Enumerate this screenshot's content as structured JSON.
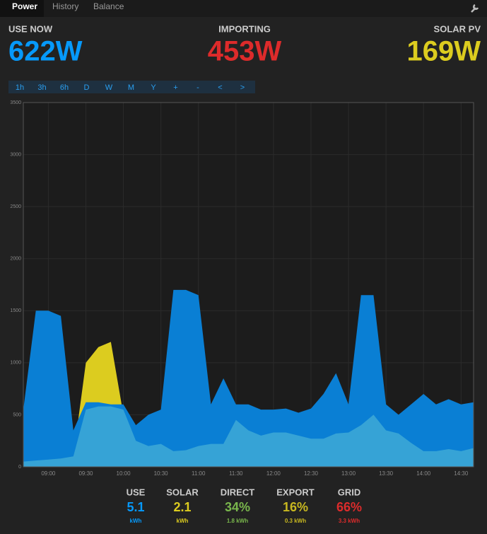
{
  "nav": {
    "tabs": [
      "Power",
      "History",
      "Balance"
    ]
  },
  "stats": [
    {
      "label": "USE NOW",
      "value": "622W",
      "color": "#0699fa"
    },
    {
      "label": "IMPORTING",
      "value": "453W",
      "color": "#dd2b2b"
    },
    {
      "label": "SOLAR PV",
      "value": "169W",
      "color": "#dccc1f"
    }
  ],
  "range_buttons": [
    "1h",
    "3h",
    "6h",
    "D",
    "W",
    "M",
    "Y",
    "+",
    "-",
    "<",
    ">"
  ],
  "chart_data": {
    "type": "area",
    "x": [
      "08:40",
      "08:50",
      "09:00",
      "09:10",
      "09:20",
      "09:30",
      "09:40",
      "09:50",
      "10:00",
      "10:10",
      "10:20",
      "10:30",
      "10:40",
      "10:50",
      "11:00",
      "11:10",
      "11:20",
      "11:30",
      "11:40",
      "11:50",
      "12:00",
      "12:10",
      "12:20",
      "12:30",
      "12:40",
      "12:50",
      "13:00",
      "13:10",
      "13:20",
      "13:30",
      "13:40",
      "13:50",
      "14:00",
      "14:10",
      "14:20",
      "14:30",
      "14:40"
    ],
    "series": [
      {
        "name": "Solar",
        "color": "#dccc1f",
        "values": [
          50,
          60,
          70,
          80,
          100,
          1000,
          1150,
          1200,
          500,
          250,
          200,
          220,
          150,
          160,
          200,
          220,
          220,
          450,
          350,
          300,
          330,
          330,
          300,
          270,
          270,
          320,
          330,
          400,
          500,
          350,
          320,
          230,
          150,
          150,
          170,
          150,
          180
        ]
      },
      {
        "name": "Use",
        "color": "#0a7fd4",
        "values": [
          550,
          1500,
          1500,
          1450,
          350,
          620,
          620,
          600,
          600,
          400,
          500,
          550,
          1700,
          1700,
          1650,
          600,
          850,
          600,
          600,
          550,
          550,
          560,
          520,
          560,
          700,
          900,
          600,
          1650,
          1650,
          600,
          500,
          600,
          700,
          600,
          650,
          600,
          620
        ]
      },
      {
        "name": "Direct",
        "color": "#36a3d6",
        "values": [
          50,
          60,
          70,
          80,
          100,
          550,
          580,
          580,
          550,
          250,
          200,
          220,
          150,
          160,
          200,
          220,
          220,
          450,
          350,
          300,
          330,
          330,
          300,
          270,
          270,
          320,
          330,
          400,
          500,
          350,
          320,
          230,
          150,
          150,
          170,
          150,
          180
        ]
      }
    ],
    "xlim": [
      "08:40",
      "14:40"
    ],
    "xticks": [
      "09:00",
      "09:30",
      "10:00",
      "10:30",
      "11:00",
      "11:30",
      "12:00",
      "12:30",
      "13:00",
      "13:30",
      "14:00",
      "14:30"
    ],
    "ylim": [
      0,
      3500
    ],
    "yticks": [
      0,
      500,
      1000,
      1500,
      2000,
      2500,
      3000,
      3500
    ],
    "grid": true
  },
  "summary": [
    {
      "label": "USE",
      "value": "5.1",
      "sub": "kWh",
      "color": "#0699fa"
    },
    {
      "label": "SOLAR",
      "value": "2.1",
      "sub": "kWh",
      "color": "#dccc1f"
    },
    {
      "label": "DIRECT",
      "value": "34%",
      "sub": "1.8 kWh",
      "color": "#79b64c"
    },
    {
      "label": "EXPORT",
      "value": "16%",
      "sub": "0.3 kWh",
      "color": "#c8b820"
    },
    {
      "label": "GRID",
      "value": "66%",
      "sub": "3.3 kWh",
      "color": "#dd2b2b"
    }
  ]
}
